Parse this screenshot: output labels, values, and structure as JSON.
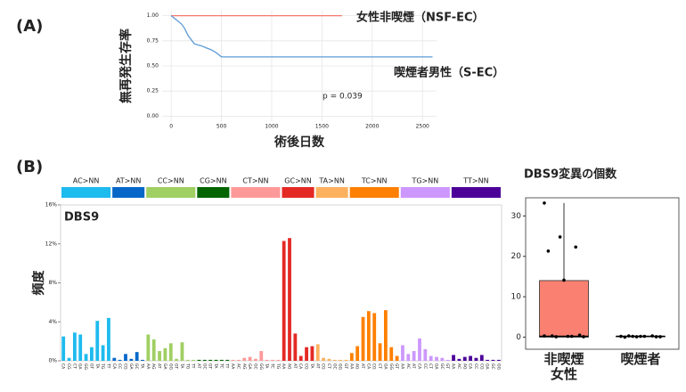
{
  "chart_data": [
    {
      "type": "line",
      "panel_label": "(A)",
      "x_label": "術後日数",
      "y_label": "無再発生存率",
      "annotation": "p = 0.039",
      "xlim": [
        -90,
        2640
      ],
      "ylim": [
        -0.05,
        1.05
      ],
      "xticks": [
        0,
        500,
        1000,
        1500,
        2000,
        2500
      ],
      "yticks": [
        {
          "value": 0,
          "label": "0.00"
        },
        {
          "value": 0.25,
          "label": "0.25"
        },
        {
          "value": 0.5,
          "label": "0.50"
        },
        {
          "value": 0.75,
          "label": "0.75"
        },
        {
          "value": 1,
          "label": "1.00"
        }
      ],
      "grid": true,
      "series": [
        {
          "name": "女性非喫煙（NSF-EC）",
          "color": "#f8766d",
          "x": [
            0,
            1700
          ],
          "values": [
            1,
            1
          ]
        },
        {
          "name": "喫煙者男性（S-EC）",
          "color": "#5b9bd5",
          "x": [
            0,
            50,
            100,
            130,
            150,
            170,
            200,
            230,
            300,
            350,
            400,
            450,
            500,
            2600
          ],
          "values": [
            1,
            0.96,
            0.92,
            0.88,
            0.84,
            0.8,
            0.76,
            0.72,
            0.7,
            0.68,
            0.66,
            0.63,
            0.59,
            0.59
          ]
        }
      ]
    },
    {
      "type": "bar",
      "panel_label": "(B)",
      "title": "DBS9",
      "y_label": "頻度",
      "ylim": [
        0,
        16
      ],
      "yticks": [
        {
          "value": 0,
          "label": "0%"
        },
        {
          "value": 4,
          "label": "4%"
        },
        {
          "value": 8,
          "label": "8%"
        },
        {
          "value": 12,
          "label": "12%"
        },
        {
          "value": 16,
          "label": "16%"
        }
      ],
      "series": [
        {
          "name": "AC>NN",
          "color": "#1ebbee",
          "categories": [
            "CA",
            "CG",
            "CT",
            "GA",
            "GG",
            "GT",
            "TA",
            "TG",
            "TT"
          ],
          "values": [
            2.5,
            0.3,
            2.9,
            2.7,
            0.7,
            1.4,
            4.1,
            1.6,
            4.4
          ]
        },
        {
          "name": "AT>NN",
          "color": "#0767c9",
          "categories": [
            "CA",
            "CC",
            "CG",
            "GA",
            "GC",
            "TA"
          ],
          "values": [
            0.3,
            0.1,
            0.7,
            0.2,
            0.9,
            0.1
          ]
        },
        {
          "name": "CC>NN",
          "color": "#a0cf63",
          "categories": [
            "AA",
            "AG",
            "AT",
            "GA",
            "GG",
            "GT",
            "TA",
            "TG",
            "TT"
          ],
          "values": [
            2.7,
            2.2,
            1.0,
            1.3,
            1.8,
            0.2,
            1.9,
            0.1,
            0.1
          ]
        },
        {
          "name": "CG>NN",
          "color": "#036400",
          "categories": [
            "AT",
            "GC",
            "GT",
            "TA",
            "TC",
            "TT"
          ],
          "values": [
            0.1,
            0.1,
            0.1,
            0.1,
            0.1,
            0.1
          ]
        },
        {
          "name": "CT>NN",
          "color": "#fe9999",
          "categories": [
            "AA",
            "AC",
            "AG",
            "GA",
            "GC",
            "GG",
            "TA",
            "TC",
            "TG"
          ],
          "values": [
            0.1,
            0.1,
            0.3,
            0.4,
            0.2,
            1.0,
            0.1,
            0.1,
            0.1
          ]
        },
        {
          "name": "GC>NN",
          "color": "#e42925",
          "categories": [
            "AA",
            "AG",
            "AT",
            "CA",
            "CG",
            "TA"
          ],
          "values": [
            12.3,
            12.6,
            2.8,
            0.5,
            1.4,
            1.5
          ]
        },
        {
          "name": "TA>NN",
          "color": "#fdb15f",
          "categories": [
            "AT",
            "CG",
            "CT",
            "GC",
            "GG",
            "GT"
          ],
          "values": [
            1.7,
            0.3,
            0.2,
            0.1,
            0.1,
            0.1
          ]
        },
        {
          "name": "TC>NN",
          "color": "#fe8002",
          "categories": [
            "AA",
            "AG",
            "AT",
            "CA",
            "CG",
            "CT",
            "GA",
            "GG",
            "GT"
          ],
          "values": [
            0.8,
            1.5,
            4.5,
            5.1,
            4.9,
            1.8,
            5.2,
            1.4,
            0.5
          ]
        },
        {
          "name": "TG>NN",
          "color": "#cd98fd",
          "categories": [
            "AA",
            "AC",
            "AT",
            "CA",
            "CC",
            "CT",
            "GA",
            "GC",
            "GT"
          ],
          "values": [
            1.6,
            0.7,
            1.0,
            2.3,
            1.2,
            0.5,
            0.4,
            0.3,
            0.1
          ]
        },
        {
          "name": "TT>NN",
          "color": "#4c0199",
          "categories": [
            "AA",
            "AC",
            "AG",
            "CA",
            "CC",
            "CG",
            "GA",
            "GC",
            "GG"
          ],
          "values": [
            0.6,
            0.2,
            0.4,
            0.5,
            0.3,
            0.6,
            0.1,
            0.1,
            0.1
          ]
        }
      ]
    },
    {
      "type": "box",
      "title": "DBS9変異の個数",
      "categories": [
        "非喫煙女性",
        "喫煙者"
      ],
      "colors": [
        "#fa8072",
        "#fa8072"
      ],
      "min": [
        0,
        0
      ],
      "q1": [
        0,
        0.1
      ],
      "median": [
        0.2,
        0.2
      ],
      "q3": [
        14,
        0.2
      ],
      "max": [
        33.2,
        0.3
      ],
      "points": [
        [
          33.2,
          24.8,
          22.3,
          21.3,
          14.1,
          0.5,
          0.3,
          0.2,
          0.1,
          0.1,
          0.2,
          0.3
        ],
        [
          0.2,
          0.1,
          0.3,
          0,
          0.2,
          0.1,
          0.3,
          0.2,
          0.1,
          0.2
        ]
      ],
      "ylim": [
        -3,
        34.5
      ],
      "yticks": [
        0,
        10,
        20,
        30
      ]
    }
  ]
}
